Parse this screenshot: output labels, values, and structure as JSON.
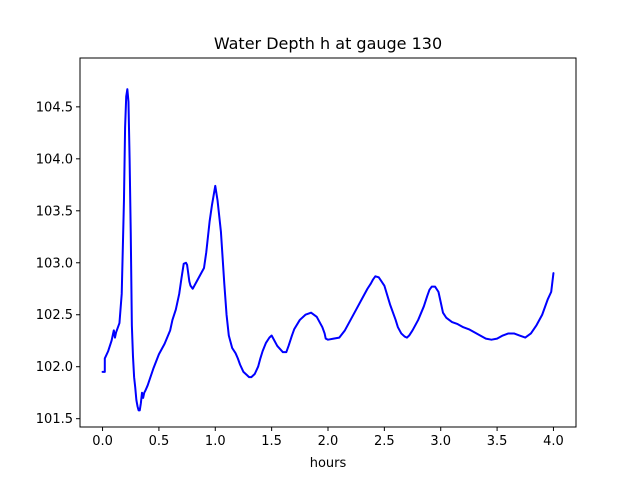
{
  "chart_data": {
    "type": "line",
    "title": "Water Depth h at gauge 130",
    "xlabel": "hours",
    "ylabel": "",
    "xlim": [
      -0.2,
      4.2
    ],
    "ylim": [
      101.42,
      104.97
    ],
    "xticks": [
      0.0,
      0.5,
      1.0,
      1.5,
      2.0,
      2.5,
      3.0,
      3.5,
      4.0
    ],
    "xtick_labels": [
      "0.0",
      "0.5",
      "1.0",
      "1.5",
      "2.0",
      "2.5",
      "3.0",
      "3.5",
      "4.0"
    ],
    "yticks": [
      101.5,
      102.0,
      102.5,
      103.0,
      103.5,
      104.0,
      104.5
    ],
    "ytick_labels": [
      "101.5",
      "102.0",
      "102.5",
      "103.0",
      "103.5",
      "104.0",
      "104.5"
    ],
    "grid": false,
    "series": [
      {
        "color": "#0000ff",
        "x": [
          0.0,
          0.02,
          0.02,
          0.05,
          0.08,
          0.1,
          0.11,
          0.12,
          0.15,
          0.17,
          0.19,
          0.2,
          0.21,
          0.22,
          0.23,
          0.24,
          0.25,
          0.26,
          0.27,
          0.28,
          0.29,
          0.3,
          0.31,
          0.32,
          0.33,
          0.34,
          0.35,
          0.36,
          0.37,
          0.38,
          0.4,
          0.45,
          0.5,
          0.55,
          0.6,
          0.62,
          0.65,
          0.68,
          0.7,
          0.72,
          0.74,
          0.75,
          0.77,
          0.78,
          0.8,
          0.85,
          0.9,
          0.92,
          0.95,
          0.97,
          1.0,
          1.02,
          1.05,
          1.08,
          1.1,
          1.12,
          1.15,
          1.18,
          1.2,
          1.22,
          1.25,
          1.28,
          1.3,
          1.32,
          1.35,
          1.38,
          1.4,
          1.42,
          1.45,
          1.48,
          1.5,
          1.55,
          1.6,
          1.63,
          1.65,
          1.68,
          1.7,
          1.75,
          1.8,
          1.85,
          1.9,
          1.95,
          1.97,
          1.98,
          2.0,
          2.05,
          2.1,
          2.15,
          2.2,
          2.25,
          2.3,
          2.35,
          2.38,
          2.4,
          2.42,
          2.45,
          2.5,
          2.55,
          2.6,
          2.62,
          2.65,
          2.68,
          2.7,
          2.72,
          2.75,
          2.8,
          2.85,
          2.88,
          2.9,
          2.92,
          2.95,
          2.98,
          3.0,
          3.02,
          3.05,
          3.1,
          3.15,
          3.2,
          3.25,
          3.3,
          3.35,
          3.4,
          3.45,
          3.5,
          3.55,
          3.6,
          3.65,
          3.7,
          3.75,
          3.8,
          3.85,
          3.9,
          3.95,
          3.98,
          4.0
        ],
        "y": [
          101.95,
          101.95,
          102.08,
          102.15,
          102.25,
          102.35,
          102.28,
          102.33,
          102.42,
          102.7,
          103.6,
          104.3,
          104.6,
          104.67,
          104.55,
          104.0,
          103.3,
          102.4,
          102.1,
          101.9,
          101.8,
          101.68,
          101.62,
          101.58,
          101.58,
          101.65,
          101.75,
          101.7,
          101.75,
          101.77,
          101.82,
          101.98,
          102.12,
          102.22,
          102.35,
          102.45,
          102.55,
          102.7,
          102.85,
          102.99,
          103.0,
          102.98,
          102.82,
          102.78,
          102.75,
          102.85,
          102.95,
          103.1,
          103.4,
          103.55,
          103.74,
          103.6,
          103.3,
          102.8,
          102.5,
          102.3,
          102.18,
          102.13,
          102.08,
          102.02,
          101.95,
          101.92,
          101.9,
          101.9,
          101.93,
          102.0,
          102.08,
          102.15,
          102.23,
          102.28,
          102.3,
          102.2,
          102.14,
          102.14,
          102.2,
          102.3,
          102.36,
          102.45,
          102.5,
          102.52,
          102.48,
          102.38,
          102.32,
          102.27,
          102.26,
          102.27,
          102.28,
          102.35,
          102.45,
          102.55,
          102.65,
          102.75,
          102.8,
          102.84,
          102.87,
          102.86,
          102.78,
          102.6,
          102.45,
          102.38,
          102.32,
          102.29,
          102.28,
          102.3,
          102.35,
          102.45,
          102.58,
          102.68,
          102.74,
          102.77,
          102.77,
          102.72,
          102.62,
          102.52,
          102.47,
          102.43,
          102.41,
          102.38,
          102.36,
          102.33,
          102.3,
          102.27,
          102.26,
          102.27,
          102.3,
          102.32,
          102.32,
          102.3,
          102.28,
          102.32,
          102.4,
          102.5,
          102.65,
          102.72,
          102.9
        ]
      }
    ]
  }
}
